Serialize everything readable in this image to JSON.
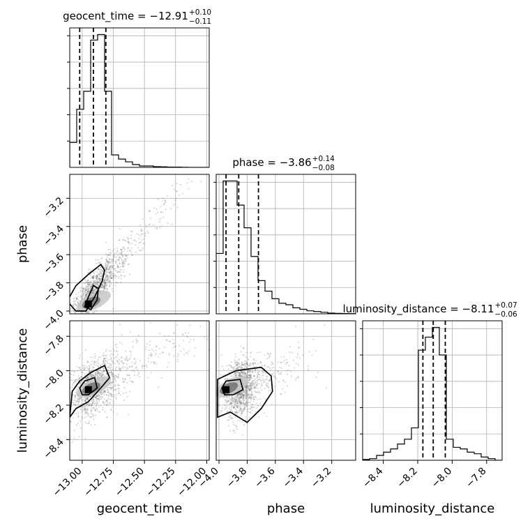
{
  "chart_data": {
    "type": "corner",
    "parameters": [
      {
        "name": "geocent_time",
        "label": "geocent_time",
        "title": "geocent_time = −12.91",
        "sup": "+0.10",
        "sub": "−0.11",
        "range": [
          -13.1,
          -11.98
        ],
        "ticks": [
          -13.0,
          -12.75,
          -12.5,
          -12.25,
          -12.0
        ],
        "tick_labels": [
          "−13.00",
          "−12.75",
          "−12.50",
          "−12.25",
          "−12.00"
        ],
        "quantiles": [
          -13.02,
          -12.91,
          -12.81
        ],
        "hist_edges": [
          -13.1,
          -13.044,
          -12.988,
          -12.932,
          -12.876,
          -12.82,
          -12.764,
          -12.708,
          -12.652,
          -12.596,
          -12.54,
          -12.484,
          -12.428,
          -12.372,
          -12.316,
          -12.26,
          -12.204,
          -12.148,
          -12.092,
          -12.036,
          -11.98
        ],
        "hist_counts": [
          18,
          42,
          55,
          92,
          96,
          55,
          9,
          6,
          4,
          2,
          1,
          1,
          0.5,
          0.4,
          0.2,
          0.2,
          0.1,
          0,
          0,
          0
        ]
      },
      {
        "name": "phase",
        "label": "phase",
        "title": "phase = −3.86",
        "sup": "+0.14",
        "sub": "−0.08",
        "range": [
          -4.02,
          -3.03
        ],
        "ticks": [
          -4.0,
          -3.8,
          -3.6,
          -3.4,
          -3.2
        ],
        "tick_labels": [
          "−4.0",
          "−3.8",
          "−3.6",
          "−3.4",
          "−3.2"
        ],
        "quantiles": [
          -3.95,
          -3.86,
          -3.72
        ],
        "hist_edges": [
          -4.02,
          -3.9705,
          -3.921,
          -3.8715,
          -3.822,
          -3.7725,
          -3.723,
          -3.6735,
          -3.624,
          -3.5745,
          -3.525,
          -3.4755,
          -3.426,
          -3.3765,
          -3.327,
          -3.2775,
          -3.228,
          -3.1785,
          -3.129,
          -3.0795,
          -3.03
        ],
        "hist_counts": [
          40,
          88,
          88,
          72,
          57,
          38,
          22,
          15,
          10,
          7,
          6,
          4,
          3,
          2,
          1.5,
          1,
          0.5,
          0.3,
          0.2,
          0.1
        ]
      },
      {
        "name": "luminosity_distance",
        "label": "luminosity_distance",
        "title": "luminosity_distance = −8.11",
        "sup": "+0.07",
        "sub": "−0.06",
        "range": [
          -8.52,
          -7.71
        ],
        "ticks": [
          -8.4,
          -8.2,
          -8.0,
          -7.8
        ],
        "tick_labels": [
          "−8.4",
          "−8.2",
          "−8.0",
          "−7.8"
        ],
        "quantiles": [
          -8.17,
          -8.11,
          -8.04
        ],
        "hist_edges": [
          -8.52,
          -8.4795,
          -8.439,
          -8.3985,
          -8.358,
          -8.3175,
          -8.277,
          -8.2365,
          -8.196,
          -8.1555,
          -8.115,
          -8.0745,
          -8.034,
          -7.9935,
          -7.953,
          -7.9125,
          -7.872,
          -7.8315,
          -7.791,
          -7.7505,
          -7.71
        ],
        "hist_counts": [
          0.5,
          1,
          3,
          5,
          7,
          10,
          13,
          20,
          68,
          76,
          82,
          65,
          13,
          8,
          7,
          5,
          4,
          2,
          1,
          0
        ]
      }
    ],
    "pairs": [
      {
        "x": "geocent_time",
        "y": "phase",
        "samples_center": [
          -12.92,
          -3.87
        ],
        "samples_slope": 1.05,
        "samples_spread": [
          0.28,
          0.07
        ],
        "contours": [
          [
            [
              -13.05,
              -4.0
            ],
            [
              -13.12,
              -3.93
            ],
            [
              -13.05,
              -3.82
            ],
            [
              -12.95,
              -3.74
            ],
            [
              -12.85,
              -3.67
            ],
            [
              -12.82,
              -3.71
            ],
            [
              -12.84,
              -3.79
            ],
            [
              -12.9,
              -3.9
            ],
            [
              -12.97,
              -4.0
            ]
          ],
          [
            [
              -12.98,
              -3.97
            ],
            [
              -12.95,
              -3.9
            ],
            [
              -12.91,
              -3.82
            ],
            [
              -12.87,
              -3.84
            ],
            [
              -12.88,
              -3.92
            ],
            [
              -12.93,
              -3.99
            ]
          ]
        ],
        "density_peak": [
          -12.95,
          -3.95
        ]
      },
      {
        "x": "geocent_time",
        "y": "luminosity_distance",
        "samples_center": [
          -12.92,
          -8.1
        ],
        "samples_slope": 0.35,
        "samples_spread": [
          0.3,
          0.08
        ],
        "contours": [
          [
            [
              -13.1,
              -8.27
            ],
            [
              -13.08,
              -8.12
            ],
            [
              -13.02,
              -8.06
            ],
            [
              -12.93,
              -8.01
            ],
            [
              -12.82,
              -7.97
            ],
            [
              -12.78,
              -8.04
            ],
            [
              -12.85,
              -8.1
            ],
            [
              -12.95,
              -8.18
            ],
            [
              -13.05,
              -8.22
            ]
          ],
          [
            [
              -13.02,
              -8.1
            ],
            [
              -12.98,
              -8.06
            ],
            [
              -12.9,
              -8.04
            ],
            [
              -12.88,
              -8.1
            ],
            [
              -12.95,
              -8.14
            ],
            [
              -13.0,
              -8.14
            ]
          ]
        ],
        "density_peak": [
          -12.95,
          -8.11
        ]
      },
      {
        "x": "phase",
        "y": "luminosity_distance",
        "samples_center": [
          -3.86,
          -8.1
        ],
        "samples_slope": 0.35,
        "samples_spread": [
          0.15,
          0.08
        ],
        "contours": [
          [
            [
              -4.01,
              -8.27
            ],
            [
              -4.01,
              -8.05
            ],
            [
              -3.88,
              -8.0
            ],
            [
              -3.7,
              -7.98
            ],
            [
              -3.63,
              -8.03
            ],
            [
              -3.62,
              -8.12
            ],
            [
              -3.7,
              -8.22
            ],
            [
              -3.8,
              -8.3
            ],
            [
              -3.92,
              -8.24
            ]
          ],
          [
            [
              -3.98,
              -8.1
            ],
            [
              -3.95,
              -8.06
            ],
            [
              -3.85,
              -8.05
            ],
            [
              -3.83,
              -8.11
            ],
            [
              -3.9,
              -8.14
            ],
            [
              -3.96,
              -8.14
            ]
          ]
        ],
        "density_peak": [
          -3.95,
          -8.11
        ]
      }
    ]
  }
}
